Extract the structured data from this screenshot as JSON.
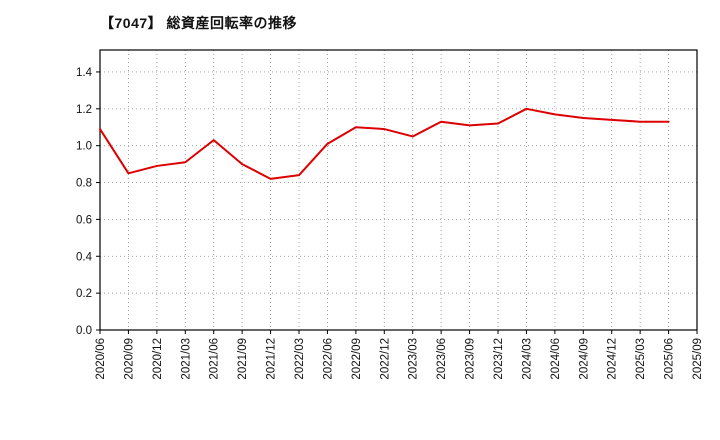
{
  "title": "【7047】 総資産回転率の推移",
  "chart_data": {
    "type": "line",
    "title": "【7047】 総資産回転率の推移",
    "xlabel": "",
    "ylabel": "",
    "categories": [
      "2020/06",
      "2020/09",
      "2020/12",
      "2021/03",
      "2021/06",
      "2021/09",
      "2021/12",
      "2022/03",
      "2022/06",
      "2022/09",
      "2022/12",
      "2023/03",
      "2023/06",
      "2023/09",
      "2023/12",
      "2024/03",
      "2024/06",
      "2024/09",
      "2024/12",
      "2025/03",
      "2025/06",
      "2025/09"
    ],
    "values": [
      1.09,
      0.85,
      0.89,
      0.91,
      1.03,
      0.9,
      0.82,
      0.84,
      1.01,
      1.1,
      1.09,
      1.05,
      1.13,
      1.11,
      1.12,
      1.2,
      1.17,
      1.15,
      1.14,
      1.13,
      1.13,
      null
    ],
    "ylim": [
      0.0,
      1.4
    ],
    "yticks": [
      0.0,
      0.2,
      0.4,
      0.6,
      0.8,
      1.0,
      1.2,
      1.4
    ],
    "grid": "dotted",
    "legend": "none",
    "line_color": "#dd0000",
    "grid_color": "#999999",
    "axis_color": "#000000",
    "text_color": "#111111"
  }
}
